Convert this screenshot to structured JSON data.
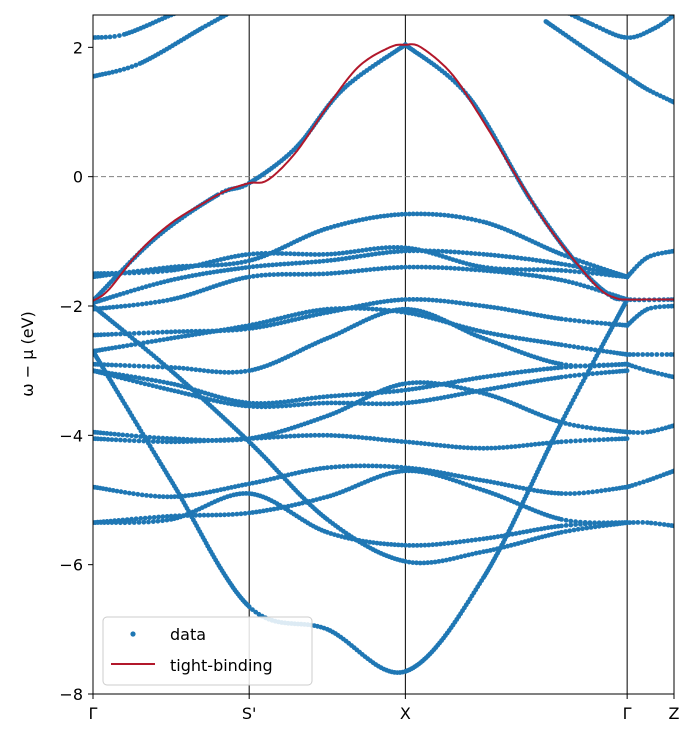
{
  "chart_data": {
    "type": "scatter",
    "ylabel": "ω − μ (eV)",
    "xlabel": "",
    "ylim": [
      -8,
      2.5
    ],
    "yticks": [
      2,
      0,
      -2,
      -4,
      -6,
      -8
    ],
    "ytick_labels": [
      "2",
      "0",
      "−2",
      "−4",
      "−6",
      "−8"
    ],
    "xlim": [
      0,
      3.72
    ],
    "kpoints": [
      {
        "label": "Γ",
        "x": 0
      },
      {
        "label": "S'",
        "x": 1.0
      },
      {
        "label": "X",
        "x": 2.0
      },
      {
        "label": "Γ",
        "x": 3.42
      },
      {
        "label": "Z",
        "x": 3.72
      }
    ],
    "fermi_level": 0,
    "legend": {
      "position": "lower-left",
      "entries": [
        {
          "label": "data",
          "kind": "marker",
          "color": "#1f77b4"
        },
        {
          "label": "tight-binding",
          "kind": "line",
          "color": "#b2182b"
        }
      ]
    },
    "colors": {
      "data": "#1f77b4",
      "fit": "#b2182b",
      "fermi": "#808080"
    },
    "series": [
      {
        "name": "tight-binding",
        "kind": "line",
        "x": [
          0,
          0.1,
          0.3,
          0.5,
          0.7,
          0.85,
          1.0,
          1.12,
          1.3,
          1.5,
          1.7,
          1.9,
          2.0,
          2.1,
          2.3,
          2.5,
          2.7,
          2.9,
          3.1,
          3.25,
          3.35,
          3.42,
          3.55,
          3.72
        ],
        "y": [
          -1.92,
          -1.75,
          -1.15,
          -0.72,
          -0.42,
          -0.22,
          -0.1,
          -0.05,
          0.38,
          1.08,
          1.7,
          2.0,
          2.04,
          2.0,
          1.58,
          0.85,
          0.05,
          -0.72,
          -1.35,
          -1.75,
          -1.88,
          -1.9,
          -1.9,
          -1.9
        ]
      },
      {
        "name": "data",
        "kind": "scatter",
        "points": [
          {
            "x": [
              0,
              0.4,
              0.8,
              1.0,
              1.3,
              1.6,
              2.0
            ],
            "y": [
              -1.92,
              -0.95,
              -0.28,
              -0.1,
              0.45,
              1.35,
              2.04
            ]
          },
          {
            "x": [
              2.0,
              2.4,
              2.8,
              3.1,
              3.3,
              3.42,
              3.72
            ],
            "y": [
              2.04,
              1.25,
              -0.35,
              -1.35,
              -1.82,
              -1.9,
              -1.9
            ]
          },
          {
            "x": [
              0,
              0.5,
              1.0,
              1.5,
              2.0,
              2.5,
              3.0,
              3.42
            ],
            "y": [
              -1.55,
              -1.4,
              -1.3,
              -0.8,
              -0.58,
              -0.7,
              -1.2,
              -1.55
            ]
          },
          {
            "x": [
              0,
              0.5,
              1.0,
              1.5,
              2.0,
              2.5,
              3.0,
              3.42
            ],
            "y": [
              -1.5,
              -1.45,
              -1.2,
              -1.2,
              -1.1,
              -1.4,
              -1.45,
              -1.55
            ]
          },
          {
            "x": [
              0,
              0.5,
              1.0,
              1.5,
              2.0,
              2.5,
              3.0,
              3.42
            ],
            "y": [
              -1.95,
              -1.6,
              -1.4,
              -1.3,
              -1.15,
              -1.2,
              -1.35,
              -1.55
            ]
          },
          {
            "x": [
              0,
              0.5,
              1.0,
              1.5,
              2.0,
              2.5,
              3.0,
              3.42
            ],
            "y": [
              -2.05,
              -1.9,
              -1.55,
              -1.5,
              -1.4,
              -1.45,
              -1.6,
              -1.9
            ]
          },
          {
            "x": [
              0,
              0.5,
              1.0,
              1.5,
              2.0,
              2.5,
              3.0,
              3.42
            ],
            "y": [
              -2.45,
              -2.4,
              -2.35,
              -2.1,
              -1.9,
              -2.0,
              -2.2,
              -2.3
            ]
          },
          {
            "x": [
              0,
              0.5,
              1.0,
              1.5,
              2.0,
              2.5,
              3.0,
              3.42
            ],
            "y": [
              -2.7,
              -2.5,
              -2.3,
              -2.05,
              -2.1,
              -2.4,
              -2.6,
              -2.75
            ]
          },
          {
            "x": [
              0,
              0.5,
              1.0,
              1.5,
              2.0,
              2.5,
              3.0,
              3.42
            ],
            "y": [
              -2.9,
              -2.95,
              -3.0,
              -2.5,
              -2.05,
              -2.5,
              -2.9,
              -2.9
            ]
          },
          {
            "x": [
              0,
              0.5,
              1.0,
              1.5,
              2.0,
              2.5,
              3.0,
              3.42
            ],
            "y": [
              -3.0,
              -3.2,
              -3.5,
              -3.4,
              -3.3,
              -3.1,
              -2.95,
              -2.9
            ]
          },
          {
            "x": [
              0,
              0.5,
              1.0,
              1.5,
              2.0,
              2.5,
              3.0,
              3.42
            ],
            "y": [
              -3.0,
              -3.3,
              -3.55,
              -3.5,
              -3.5,
              -3.3,
              -3.1,
              -3.0
            ]
          },
          {
            "x": [
              0,
              0.5,
              1.0,
              1.5,
              2.0,
              2.5,
              3.0,
              3.42
            ],
            "y": [
              -3.95,
              -4.05,
              -4.05,
              -3.7,
              -3.2,
              -3.35,
              -3.8,
              -3.95
            ]
          },
          {
            "x": [
              0,
              0.5,
              1.0,
              1.5,
              2.0,
              2.5,
              3.0,
              3.42
            ],
            "y": [
              -4.05,
              -4.1,
              -4.05,
              -4.0,
              -4.1,
              -4.2,
              -4.1,
              -4.05
            ]
          },
          {
            "x": [
              0,
              0.5,
              1.0,
              1.5,
              2.0,
              2.5,
              3.0,
              3.42
            ],
            "y": [
              -4.8,
              -4.95,
              -4.75,
              -4.5,
              -4.5,
              -4.7,
              -4.9,
              -4.8
            ]
          },
          {
            "x": [
              0,
              0.5,
              1.0,
              1.5,
              2.0,
              2.5,
              3.0,
              3.42
            ],
            "y": [
              -5.35,
              -5.25,
              -5.2,
              -4.95,
              -4.55,
              -4.85,
              -5.3,
              -5.35
            ]
          },
          {
            "x": [
              0,
              0.5,
              1.0,
              1.5,
              2.0,
              2.5,
              3.0,
              3.42
            ],
            "y": [
              -5.35,
              -5.3,
              -4.9,
              -5.5,
              -5.7,
              -5.6,
              -5.4,
              -5.35
            ]
          },
          {
            "x": [
              0,
              0.5,
              1.0,
              1.5,
              2.0,
              2.5,
              3.0,
              3.42
            ],
            "y": [
              -2.0,
              -3.0,
              -4.1,
              -5.3,
              -5.95,
              -5.8,
              -5.5,
              -5.35
            ]
          },
          {
            "x": [
              0,
              0.5,
              1.0,
              1.5,
              2.0,
              2.5,
              3.0,
              3.42
            ],
            "y": [
              -2.7,
              -4.7,
              -6.65,
              -7.0,
              -7.65,
              -6.2,
              -3.8,
              -1.9
            ]
          },
          {
            "x": [
              0,
              0.3,
              0.7,
              1.0,
              1.2
            ],
            "y": [
              1.55,
              1.75,
              2.3,
              2.7,
              3.0
            ]
          },
          {
            "x": [
              0,
              0.2,
              0.5,
              0.8
            ],
            "y": [
              2.15,
              2.2,
              2.5,
              2.8
            ]
          },
          {
            "x": [
              2.9,
              3.2,
              3.42,
              3.55,
              3.72
            ],
            "y": [
              2.4,
              1.9,
              1.55,
              1.35,
              1.15
            ]
          },
          {
            "x": [
              2.9,
              3.2,
              3.42,
              3.6,
              3.72
            ],
            "y": [
              2.7,
              2.35,
              2.15,
              2.3,
              2.5
            ]
          },
          {
            "x": [
              3.42,
              3.55,
              3.72
            ],
            "y": [
              -1.55,
              -1.25,
              -1.15
            ]
          },
          {
            "x": [
              3.42,
              3.55,
              3.72
            ],
            "y": [
              -2.3,
              -2.05,
              -2.0
            ]
          },
          {
            "x": [
              3.42,
              3.55,
              3.72
            ],
            "y": [
              -2.75,
              -2.75,
              -2.75
            ]
          },
          {
            "x": [
              3.42,
              3.55,
              3.72
            ],
            "y": [
              -3.95,
              -3.95,
              -3.85
            ]
          },
          {
            "x": [
              3.42,
              3.55,
              3.72
            ],
            "y": [
              -4.8,
              -4.7,
              -4.55
            ]
          },
          {
            "x": [
              3.42,
              3.55,
              3.72
            ],
            "y": [
              -5.35,
              -5.35,
              -5.4
            ]
          },
          {
            "x": [
              3.42,
              3.55,
              3.72
            ],
            "y": [
              -2.9,
              -3.0,
              -3.1
            ]
          }
        ]
      }
    ]
  }
}
